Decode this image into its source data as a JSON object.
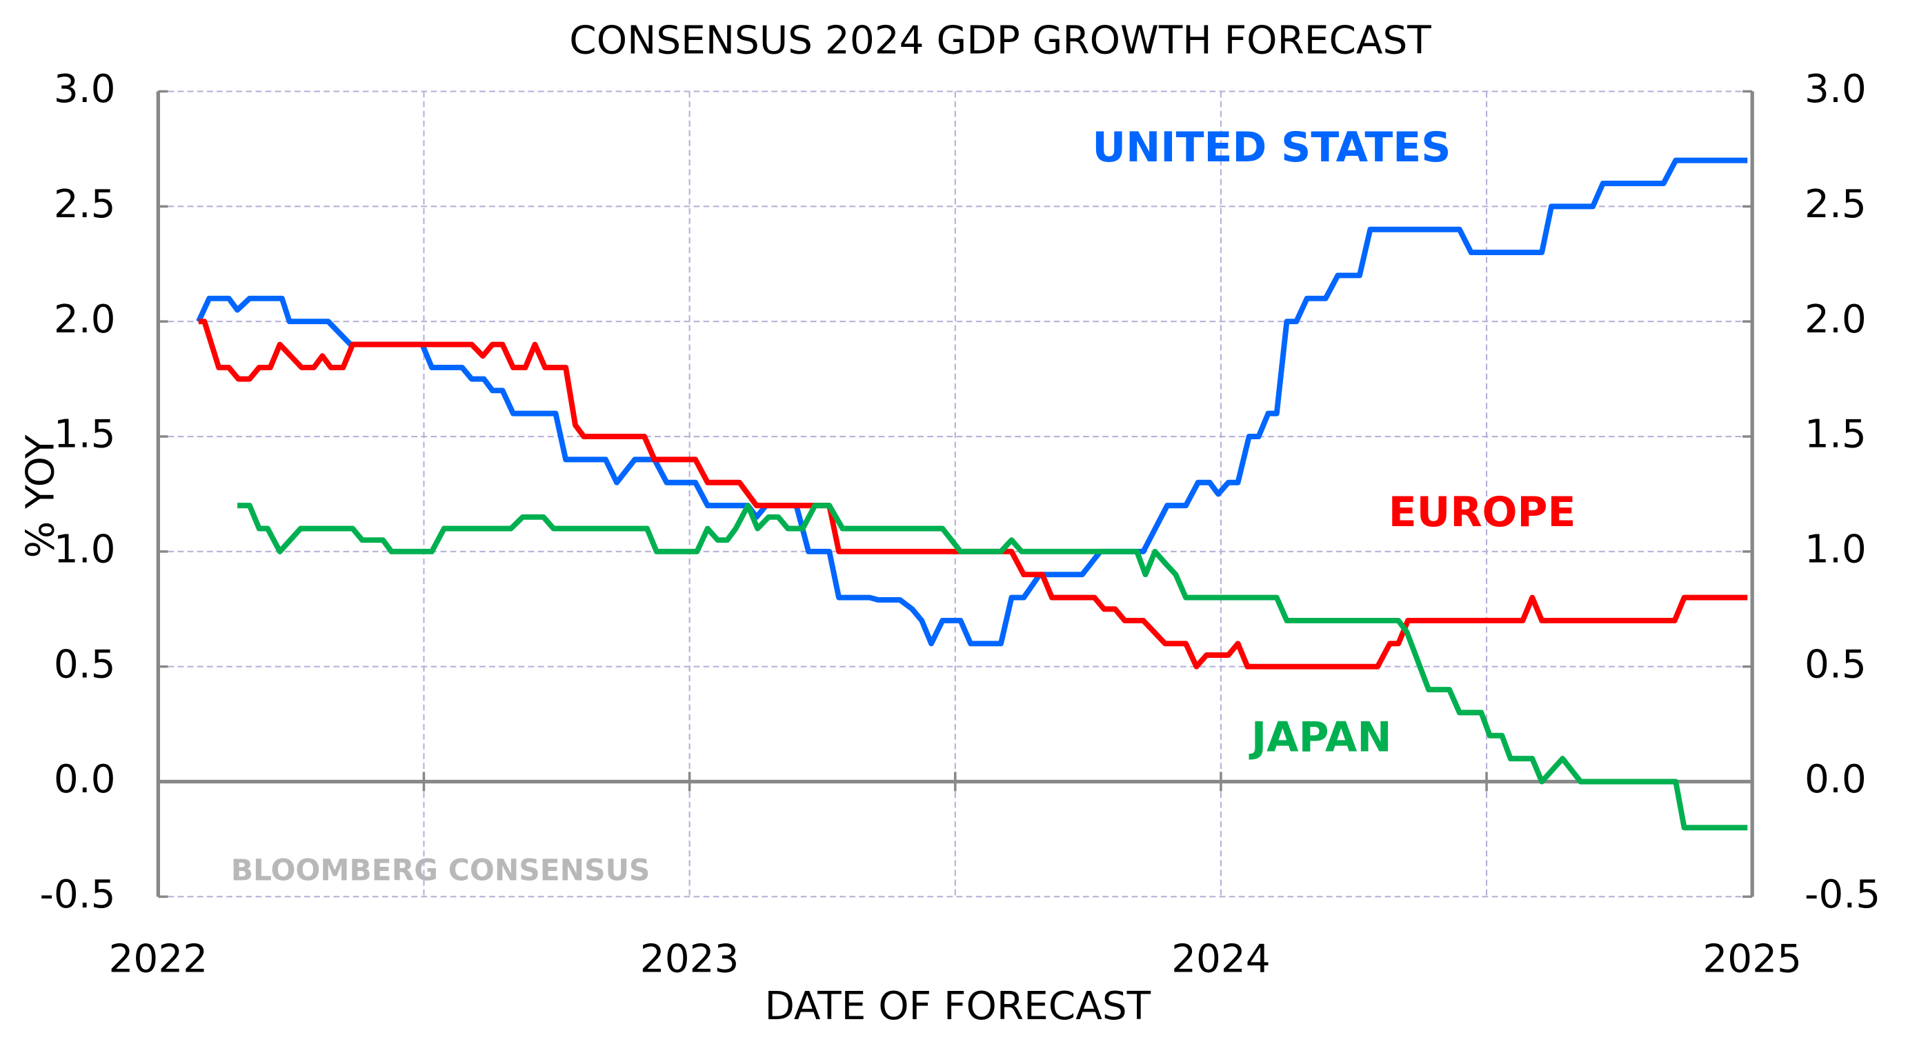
{
  "chart_data": {
    "type": "line",
    "title": "CONSENSUS 2024 GDP GROWTH FORECAST",
    "x_label": "DATE OF FORECAST",
    "y_label": "% YOY",
    "annotation": "BLOOMBERG CONSENSUS",
    "xlim": [
      2022,
      2025
    ],
    "xticks": [
      2022,
      2023,
      2024,
      2025
    ],
    "x_minor_ticks": [
      2022.5,
      2023.5,
      2024.5
    ],
    "ylim": [
      -0.5,
      3.0
    ],
    "yticks": [
      {
        "value": -0.5,
        "label": "-0.5"
      },
      {
        "value": 0,
        "label": "0.0"
      },
      {
        "value": 0.5,
        "label": "0.5"
      },
      {
        "value": 1,
        "label": "1.0"
      },
      {
        "value": 1.5,
        "label": "1.5"
      },
      {
        "value": 2,
        "label": "2.0"
      },
      {
        "value": 2.5,
        "label": "2.5"
      },
      {
        "value": 3,
        "label": "3.0"
      }
    ],
    "y2lim": [
      -0.5,
      3.0
    ],
    "y2ticks": [
      {
        "value": -0.5,
        "label": "-0.5"
      },
      {
        "value": 0,
        "label": "0.0"
      },
      {
        "value": 0.5,
        "label": "0.5"
      },
      {
        "value": 1,
        "label": "1.0"
      },
      {
        "value": 1.5,
        "label": "1.5"
      },
      {
        "value": 2,
        "label": "2.0"
      },
      {
        "value": 2.5,
        "label": "2.5"
      },
      {
        "value": 3,
        "label": "3.0"
      }
    ],
    "grid": true,
    "series": [
      {
        "name": "UNITED STATES",
        "color": "#0066ff",
        "x": [
          2022.076,
          2022.096,
          2022.133,
          2022.149,
          2022.172,
          2022.233,
          2022.247,
          2022.32,
          2022.362,
          2022.497,
          2022.515,
          2022.572,
          2022.59,
          2022.613,
          2022.629,
          2022.648,
          2022.668,
          2022.748,
          2022.767,
          2022.842,
          2022.863,
          2022.897,
          2022.934,
          2022.957,
          2023.011,
          2023.034,
          2023.11,
          2023.126,
          2023.144,
          2023.201,
          2023.224,
          2023.263,
          2023.281,
          2023.339,
          2023.355,
          2023.396,
          2023.419,
          2023.437,
          2023.455,
          2023.476,
          2023.51,
          2023.529,
          2023.586,
          2023.606,
          2023.629,
          2023.659,
          2023.739,
          2023.773,
          2023.854,
          2023.899,
          2023.934,
          2023.957,
          2023.979,
          2023.995,
          2024.014,
          2024.032,
          2024.053,
          2024.071,
          2024.089,
          2024.105,
          2024.124,
          2024.142,
          2024.162,
          2024.197,
          2024.22,
          2024.261,
          2024.281,
          2024.449,
          2024.471,
          2024.604,
          2024.622,
          2024.7,
          2024.719,
          2024.833,
          2024.856,
          2024.991
        ],
        "values": [
          2.0,
          2.1,
          2.1,
          2.05,
          2.1,
          2.1,
          2.0,
          2.0,
          1.9,
          1.9,
          1.8,
          1.8,
          1.75,
          1.75,
          1.7,
          1.7,
          1.6,
          1.6,
          1.4,
          1.4,
          1.3,
          1.4,
          1.4,
          1.3,
          1.3,
          1.2,
          1.2,
          1.15,
          1.2,
          1.2,
          1.0,
          1.0,
          0.8,
          0.8,
          0.79,
          0.79,
          0.75,
          0.7,
          0.6,
          0.7,
          0.7,
          0.6,
          0.6,
          0.8,
          0.8,
          0.9,
          0.9,
          1.0,
          1.0,
          1.2,
          1.2,
          1.3,
          1.3,
          1.25,
          1.3,
          1.3,
          1.5,
          1.5,
          1.6,
          1.6,
          2.0,
          2.0,
          2.1,
          2.1,
          2.2,
          2.2,
          2.4,
          2.4,
          2.3,
          2.3,
          2.5,
          2.5,
          2.6,
          2.6,
          2.7,
          2.7
        ]
      },
      {
        "name": "EUROPE",
        "color": "#ff0000",
        "x": [
          2022.076,
          2022.087,
          2022.114,
          2022.133,
          2022.151,
          2022.172,
          2022.19,
          2022.211,
          2022.229,
          2022.27,
          2022.293,
          2022.309,
          2022.325,
          2022.348,
          2022.366,
          2022.59,
          2022.611,
          2022.629,
          2022.648,
          2022.668,
          2022.691,
          2022.709,
          2022.728,
          2022.767,
          2022.785,
          2022.801,
          2022.915,
          2022.934,
          2023.011,
          2023.034,
          2023.094,
          2023.126,
          2023.162,
          2023.263,
          2023.281,
          2023.51,
          2023.606,
          2023.629,
          2023.664,
          2023.682,
          2023.762,
          2023.78,
          2023.801,
          2023.819,
          2023.854,
          2023.895,
          2023.934,
          2023.954,
          2023.973,
          2024.014,
          2024.032,
          2024.05,
          2024.295,
          2024.318,
          2024.334,
          2024.352,
          2024.568,
          2024.586,
          2024.604,
          2024.854,
          2024.872,
          2024.991
        ],
        "values": [
          2.0,
          2.0,
          1.8,
          1.8,
          1.75,
          1.75,
          1.8,
          1.8,
          1.9,
          1.8,
          1.8,
          1.85,
          1.8,
          1.8,
          1.9,
          1.9,
          1.85,
          1.9,
          1.9,
          1.8,
          1.8,
          1.9,
          1.8,
          1.8,
          1.55,
          1.5,
          1.5,
          1.4,
          1.4,
          1.3,
          1.3,
          1.2,
          1.2,
          1.2,
          1.0,
          1.0,
          1.0,
          0.9,
          0.9,
          0.8,
          0.8,
          0.75,
          0.75,
          0.7,
          0.7,
          0.6,
          0.6,
          0.5,
          0.55,
          0.55,
          0.6,
          0.5,
          0.5,
          0.6,
          0.6,
          0.7,
          0.7,
          0.8,
          0.7,
          0.7,
          0.8,
          0.8
        ]
      },
      {
        "name": "JAPAN",
        "color": "#00b050",
        "x": [
          2022.149,
          2022.172,
          2022.19,
          2022.206,
          2022.229,
          2022.268,
          2022.366,
          2022.384,
          2022.423,
          2022.439,
          2022.515,
          2022.538,
          2022.664,
          2022.686,
          2022.725,
          2022.744,
          2022.92,
          2022.938,
          2023.014,
          2023.034,
          2023.053,
          2023.071,
          2023.087,
          2023.11,
          2023.128,
          2023.149,
          2023.167,
          2023.185,
          2023.213,
          2023.236,
          2023.263,
          2023.288,
          2023.476,
          2023.51,
          2023.586,
          2023.606,
          2023.625,
          2023.842,
          2023.858,
          2023.876,
          2023.895,
          2023.915,
          2023.934,
          2024.105,
          2024.124,
          2024.334,
          2024.35,
          2024.391,
          2024.43,
          2024.449,
          2024.49,
          2024.506,
          2024.529,
          2024.545,
          2024.586,
          2024.604,
          2024.643,
          2024.677,
          2024.856,
          2024.872,
          2024.991
        ],
        "values": [
          1.2,
          1.2,
          1.1,
          1.1,
          1.0,
          1.1,
          1.1,
          1.05,
          1.05,
          1.0,
          1.0,
          1.1,
          1.1,
          1.15,
          1.15,
          1.1,
          1.1,
          1.0,
          1.0,
          1.1,
          1.05,
          1.05,
          1.1,
          1.2,
          1.1,
          1.15,
          1.15,
          1.1,
          1.1,
          1.2,
          1.2,
          1.1,
          1.1,
          1.0,
          1.0,
          1.05,
          1.0,
          1.0,
          0.9,
          1.0,
          0.95,
          0.9,
          0.8,
          0.8,
          0.7,
          0.7,
          0.65,
          0.4,
          0.4,
          0.3,
          0.3,
          0.2,
          0.2,
          0.1,
          0.1,
          0.0,
          0.1,
          0.0,
          0.0,
          -0.2,
          -0.2
        ]
      }
    ]
  }
}
